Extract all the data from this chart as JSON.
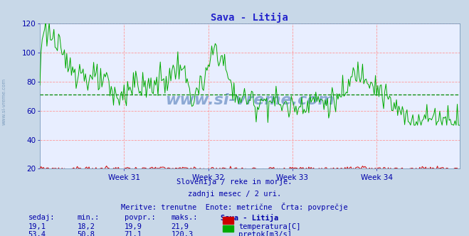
{
  "title": "Sava - Litija",
  "title_color": "#2222cc",
  "bg_color": "#c8d8e8",
  "plot_bg_color": "#e8eeff",
  "grid_color": "#ff9999",
  "ylim": [
    20,
    120
  ],
  "yticks": [
    20,
    40,
    60,
    80,
    100,
    120
  ],
  "week_labels": [
    "Week 31",
    "Week 32",
    "Week 33",
    "Week 34"
  ],
  "tick_color": "#0000aa",
  "avg_line_color": "#008800",
  "avg_line_value": 71.1,
  "temp_color": "#cc0000",
  "flow_color": "#00aa00",
  "watermark": "www.si-vreme.com",
  "watermark_color": "#3366aa",
  "subtitle1": "Slovenija / reke in morje.",
  "subtitle2": "zadnji mesec / 2 uri.",
  "subtitle3": "Meritve: trenutne  Enote: metrične  Črta: povprečje",
  "subtitle_color": "#0000aa",
  "table_headers": [
    "sedaj:",
    "min.:",
    "povpr.:",
    "maks.:",
    "Sava - Litija"
  ],
  "table_row1": [
    "19,1",
    "18,2",
    "19,9",
    "21,9",
    "temperatura[C]"
  ],
  "table_row2": [
    "53,4",
    "50,8",
    "71,1",
    "120,3",
    "pretok[m3/s]"
  ],
  "table_color": "#0000aa",
  "n_points": 360,
  "temp_base": 20.0,
  "flow_avg": 71.1,
  "flow_max": 120.3,
  "flow_min": 50.8,
  "left_label": "www.si-vreme.com",
  "left_label_color": "#7799bb"
}
